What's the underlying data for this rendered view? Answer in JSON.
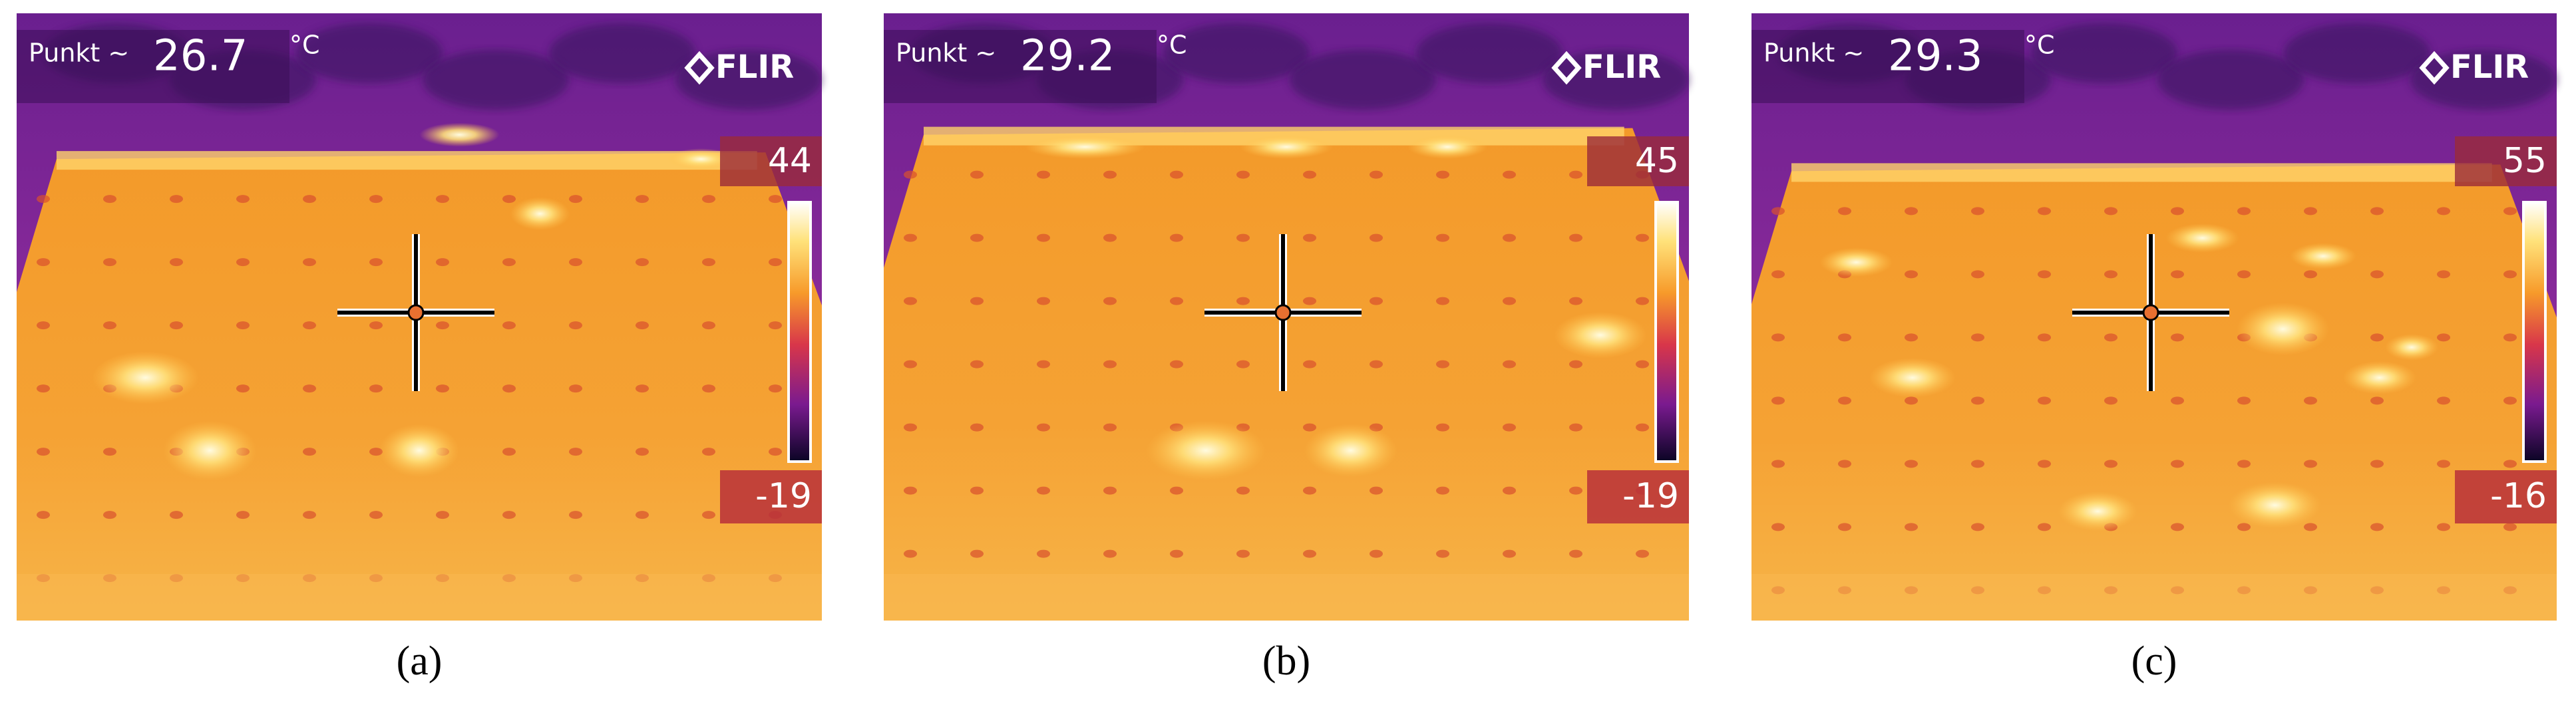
{
  "panels": [
    {
      "spot_label": "Punkt ~",
      "spot_value": "26.7",
      "unit": "°C",
      "brand": "FLIR",
      "scale_max": "44",
      "scale_min": "-19",
      "caption": "(a)"
    },
    {
      "spot_label": "Punkt ~",
      "spot_value": "29.2",
      "unit": "°C",
      "brand": "FLIR",
      "scale_max": "45",
      "scale_min": "-19",
      "caption": "(b)"
    },
    {
      "spot_label": "Punkt ~",
      "spot_value": "29.3",
      "unit": "°C",
      "brand": "FLIR",
      "scale_max": "55",
      "scale_min": "-16",
      "caption": "(c)"
    }
  ]
}
